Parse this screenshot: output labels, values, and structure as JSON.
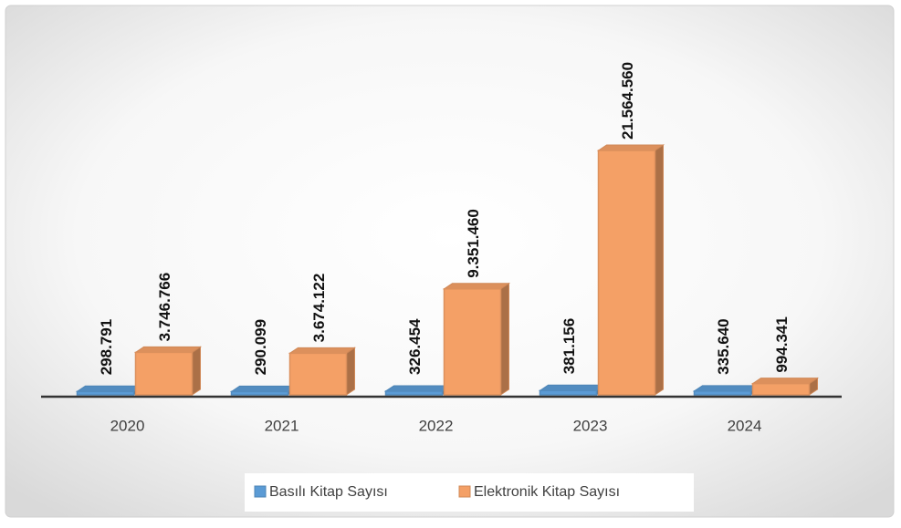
{
  "chart_data": {
    "type": "bar3d",
    "categories": [
      "2020",
      "2021",
      "2022",
      "2023",
      "2024"
    ],
    "series": [
      {
        "name": "Basılı Kitap Sayısı",
        "color": "#5b9bd5",
        "values": [
          298791,
          290099,
          326454,
          381156,
          335640
        ],
        "value_labels": [
          "298.791",
          "290.099",
          "326.454",
          "381.156",
          "335.640"
        ]
      },
      {
        "name": "Elektronik Kitap Sayısı",
        "color": "#f4a066",
        "values": [
          3746766,
          3674122,
          9351460,
          21564560,
          994341
        ],
        "value_labels": [
          "3.746.766",
          "3.674.122",
          "9.351.460",
          "21.564.560",
          "994.341"
        ]
      }
    ],
    "legend": "bottom"
  }
}
